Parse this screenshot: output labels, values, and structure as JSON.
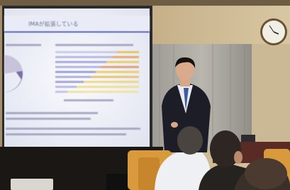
{
  "slide": {
    "title": "IMAが拡張している"
  }
}
